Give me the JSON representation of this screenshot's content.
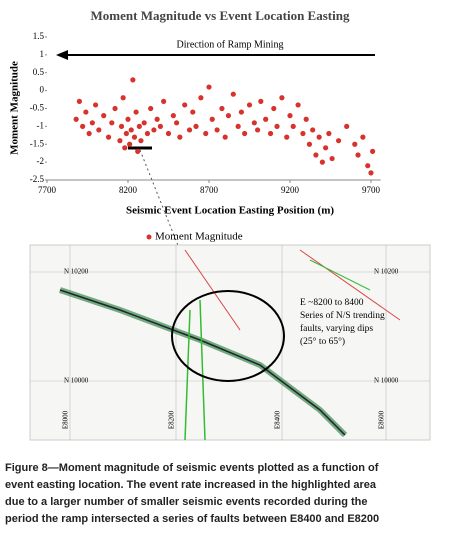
{
  "chart_data": {
    "type": "scatter",
    "title": "Moment Magnitude vs Event Location Easting",
    "xlabel": "Seismic Event Location Easting Position (m)",
    "ylabel": "Moment Magnitude",
    "annotation": "Direction of Ramp Mining",
    "xlim": [
      7700,
      9760
    ],
    "xticks": [
      7700,
      8200,
      8700,
      9200,
      9700
    ],
    "ylim": [
      -2.5,
      1.5
    ],
    "yticks": [
      1.5,
      1,
      0.5,
      0,
      -0.5,
      -1,
      -1.5,
      -2,
      -2.5
    ],
    "x": [
      7880,
      7900,
      7920,
      7940,
      7960,
      7980,
      8000,
      8020,
      8050,
      8080,
      8100,
      8120,
      8150,
      8160,
      8170,
      8180,
      8190,
      8200,
      8210,
      8220,
      8230,
      8240,
      8250,
      8260,
      8270,
      8280,
      8300,
      8320,
      8340,
      8360,
      8380,
      8400,
      8420,
      8450,
      8480,
      8500,
      8520,
      8550,
      8580,
      8600,
      8620,
      8650,
      8680,
      8700,
      8720,
      8750,
      8780,
      8800,
      8820,
      8850,
      8880,
      8900,
      8920,
      8950,
      8980,
      9000,
      9020,
      9050,
      9080,
      9100,
      9120,
      9150,
      9180,
      9200,
      9220,
      9250,
      9280,
      9300,
      9320,
      9340,
      9360,
      9380,
      9400,
      9420,
      9440,
      9460,
      9500,
      9550,
      9600,
      9620,
      9650,
      9680,
      9700,
      9710
    ],
    "series": [
      {
        "name": "Moment Magnitude",
        "color": "#d8322d",
        "values": [
          -0.8,
          -0.3,
          -1.0,
          -0.6,
          -1.2,
          -0.9,
          -0.4,
          -1.1,
          -0.7,
          -1.3,
          -0.9,
          -0.5,
          -1.4,
          -1.0,
          -0.2,
          -1.6,
          -1.2,
          -0.8,
          -1.5,
          -1.1,
          0.3,
          -1.3,
          -0.6,
          -1.7,
          -1.0,
          -1.4,
          -0.9,
          -1.2,
          -0.5,
          -1.1,
          -0.8,
          -1.0,
          -0.3,
          -1.2,
          -0.7,
          -0.9,
          -1.3,
          -0.4,
          -1.1,
          -0.6,
          -1.0,
          -0.2,
          -1.2,
          0.1,
          -0.8,
          -1.1,
          -0.5,
          -1.3,
          -0.7,
          -0.1,
          -1.0,
          -0.6,
          -1.2,
          -0.4,
          -0.9,
          -1.1,
          -0.3,
          -0.8,
          -1.2,
          -0.5,
          -1.0,
          -0.2,
          -1.3,
          -0.7,
          -1.0,
          -0.4,
          -1.2,
          -0.8,
          -1.5,
          -1.1,
          -1.8,
          -1.3,
          -2.0,
          -1.6,
          -1.2,
          -1.9,
          -1.4,
          -1.0,
          -1.5,
          -1.8,
          -1.3,
          -2.1,
          -2.3,
          -1.7
        ]
      }
    ]
  },
  "map": {
    "northings": [
      "N 10200",
      "N 10000"
    ],
    "eastings": [
      "E8000",
      "E8200",
      "E8400",
      "E8600"
    ],
    "note": [
      "E ~8200 to 8400",
      "Series of N/S trending",
      "faults, varying dips",
      "(25° to 65°)"
    ]
  },
  "caption": [
    "Figure 8—Moment magnitude of seismic events plotted as a function of",
    "event easting location. The event rate increased in the highlighted area",
    "due to a larger number of smaller seismic events recorded during the",
    "period the ramp intersected a series of faults between E8400 and E8200"
  ]
}
